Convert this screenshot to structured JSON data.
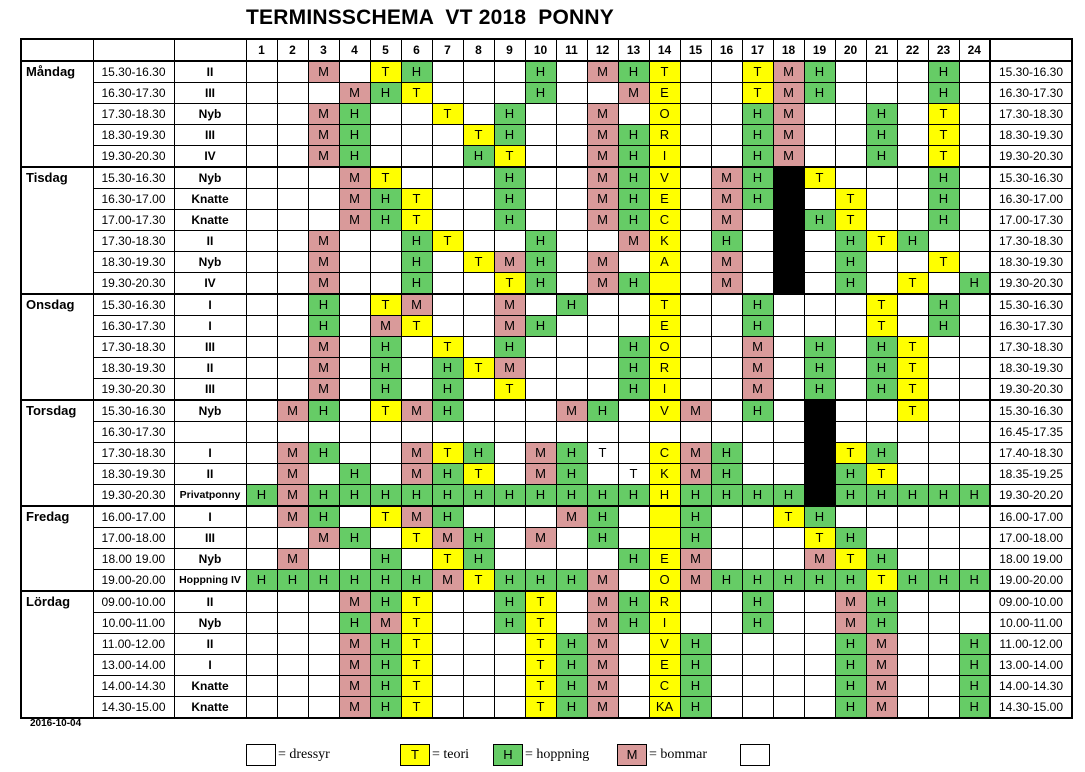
{
  "title": "TERMINSSCHEMA  VT 2018  PONNY",
  "date": "2016-10-04",
  "weeks": [
    "1",
    "2",
    "3",
    "4",
    "5",
    "6",
    "7",
    "8",
    "9",
    "10",
    "11",
    "12",
    "13",
    "14",
    "15",
    "16",
    "17",
    "18",
    "19",
    "20",
    "21",
    "22",
    "23",
    "24"
  ],
  "days": [
    {
      "name": "Måndag",
      "rows": [
        {
          "time": "15.30-16.30",
          "group": "II",
          "rtime": "15.30-16.30",
          "cells": [
            "",
            "",
            "M",
            "",
            "T",
            "H",
            "",
            "",
            "",
            "H",
            "",
            "M",
            "H",
            "T",
            "",
            "",
            "T",
            "M",
            "H",
            "",
            "",
            "",
            "H",
            ""
          ]
        },
        {
          "time": "16.30-17.30",
          "group": "III",
          "rtime": "16.30-17.30",
          "cells": [
            "",
            "",
            "",
            "M",
            "H",
            "T",
            "",
            "",
            "",
            "H",
            "",
            "",
            "M",
            "E",
            "",
            "",
            "T",
            "M",
            "H",
            "",
            "",
            "",
            "H",
            ""
          ]
        },
        {
          "time": "17.30-18.30",
          "group": "Nyb",
          "rtime": "17.30-18.30",
          "cells": [
            "",
            "",
            "M",
            "H",
            "",
            "",
            "T",
            "",
            "H",
            "",
            "",
            "M",
            "",
            "O",
            "",
            "",
            "H",
            "M",
            "",
            "",
            "H",
            "",
            "T",
            ""
          ]
        },
        {
          "time": "18.30-19.30",
          "group": "III",
          "rtime": "18.30-19.30",
          "cells": [
            "",
            "",
            "M",
            "H",
            "",
            "",
            "",
            "T",
            "H",
            "",
            "",
            "M",
            "H",
            "R",
            "",
            "",
            "H",
            "M",
            "",
            "",
            "H",
            "",
            "T",
            ""
          ]
        },
        {
          "time": "19.30-20.30",
          "group": "IV",
          "rtime": "19.30-20.30",
          "cells": [
            "",
            "",
            "M",
            "H",
            "",
            "",
            "",
            "H",
            "T",
            "",
            "",
            "M",
            "H",
            "I",
            "",
            "",
            "H",
            "M",
            "",
            "",
            "H",
            "",
            "T",
            ""
          ]
        }
      ]
    },
    {
      "name": "Tisdag",
      "rows": [
        {
          "time": "15.30-16.30",
          "group": "Nyb",
          "rtime": "15.30-16.30",
          "cells": [
            "",
            "",
            "",
            "M",
            "T",
            "",
            "",
            "",
            "H",
            "",
            "",
            "M",
            "H",
            "V",
            "",
            "M",
            "H",
            "#",
            "T",
            "",
            "",
            "",
            "H",
            ""
          ]
        },
        {
          "time": "16.30-17.00",
          "group": "Knatte",
          "rtime": "16.30-17.00",
          "cells": [
            "",
            "",
            "",
            "M",
            "H",
            "T",
            "",
            "",
            "H",
            "",
            "",
            "M",
            "H",
            "E",
            "",
            "M",
            "H",
            "#",
            "",
            "T",
            "",
            "",
            "H",
            ""
          ]
        },
        {
          "time": "17.00-17.30",
          "group": "Knatte",
          "rtime": "17.00-17.30",
          "cells": [
            "",
            "",
            "",
            "M",
            "H",
            "T",
            "",
            "",
            "H",
            "",
            "",
            "M",
            "H",
            "C",
            "",
            "M",
            "",
            "#",
            "H",
            "T",
            "",
            "",
            "H",
            ""
          ]
        },
        {
          "time": "17.30-18.30",
          "group": "II",
          "rtime": "17.30-18.30",
          "cells": [
            "",
            "",
            "M",
            "",
            "",
            "H",
            "T",
            "",
            "",
            "H",
            "",
            "",
            "M",
            "K",
            "",
            "H",
            "",
            "#",
            "",
            "H",
            "T",
            "H",
            "",
            ""
          ]
        },
        {
          "time": "18.30-19.30",
          "group": "Nyb",
          "rtime": "18.30-19.30",
          "cells": [
            "",
            "",
            "M",
            "",
            "",
            "H",
            "",
            "T",
            "M",
            "H",
            "",
            "M",
            "",
            "A",
            "",
            "M",
            "",
            "#",
            "",
            "H",
            "",
            "",
            "T",
            ""
          ]
        },
        {
          "time": "19.30-20.30",
          "group": "IV",
          "rtime": "19.30-20.30",
          "cells": [
            "",
            "",
            "M",
            "",
            "",
            "H",
            "",
            "",
            "T",
            "H",
            "",
            "M",
            "H",
            "",
            "",
            "M",
            "",
            "#",
            "",
            "H",
            "",
            "T",
            "",
            "H"
          ]
        }
      ]
    },
    {
      "name": "Onsdag",
      "rows": [
        {
          "time": "15.30-16.30",
          "group": "I",
          "rtime": "15.30-16.30",
          "cells": [
            "",
            "",
            "H",
            "",
            "T",
            "M",
            "",
            "",
            "M",
            "",
            "H",
            "",
            "",
            "T",
            "",
            "",
            "H",
            "",
            "",
            "",
            "T",
            "",
            "H",
            ""
          ]
        },
        {
          "time": "16.30-17.30",
          "group": "I",
          "rtime": "16.30-17.30",
          "cells": [
            "",
            "",
            "H",
            "",
            "M",
            "T",
            "",
            "",
            "M",
            "H",
            "",
            "",
            "",
            "E",
            "",
            "",
            "H",
            "",
            "",
            "",
            "T",
            "",
            "H",
            ""
          ]
        },
        {
          "time": "17.30-18.30",
          "group": "III",
          "rtime": "17.30-18.30",
          "cells": [
            "",
            "",
            "M",
            "",
            "H",
            "",
            "T",
            "",
            "H",
            "",
            "",
            "",
            "H",
            "O",
            "",
            "",
            "M",
            "",
            "H",
            "",
            "H",
            "T",
            "",
            ""
          ]
        },
        {
          "time": "18.30-19.30",
          "group": "II",
          "rtime": "18.30-19.30",
          "cells": [
            "",
            "",
            "M",
            "",
            "H",
            "",
            "H",
            "T",
            "M",
            "",
            "",
            "",
            "H",
            "R",
            "",
            "",
            "M",
            "",
            "H",
            "",
            "H",
            "T",
            "",
            ""
          ]
        },
        {
          "time": "19.30-20.30",
          "group": "III",
          "rtime": "19.30-20.30",
          "cells": [
            "",
            "",
            "M",
            "",
            "H",
            "",
            "H",
            "",
            "T",
            "",
            "",
            "",
            "H",
            "I",
            "",
            "",
            "M",
            "",
            "H",
            "",
            "H",
            "T",
            "",
            ""
          ]
        }
      ]
    },
    {
      "name": "Torsdag",
      "rows": [
        {
          "time": "15.30-16.30",
          "group": "Nyb",
          "rtime": "15.30-16.30",
          "cells": [
            "",
            "M",
            "H",
            "",
            "T",
            "M",
            "H",
            "",
            "",
            "",
            "M",
            "H",
            "",
            "V",
            "M",
            "",
            "H",
            "",
            "#",
            "",
            "",
            "T",
            "",
            ""
          ]
        },
        {
          "time": "16.30-17.30",
          "group": "",
          "rtime": "16.45-17.35",
          "cells": [
            "",
            "",
            "",
            "",
            "",
            "",
            "",
            "",
            "",
            "",
            "",
            "",
            "",
            "",
            "",
            "",
            "",
            "",
            "#",
            "",
            "",
            "",
            "",
            ""
          ]
        },
        {
          "time": "17.30-18.30",
          "group": "I",
          "rtime": "17.40-18.30",
          "cells": [
            "",
            "M",
            "H",
            "",
            "",
            "M",
            "T",
            "H",
            "",
            "M",
            "H",
            "T",
            "",
            "C",
            "M",
            "H",
            "",
            "",
            "#",
            "T",
            "H",
            "",
            "",
            ""
          ]
        },
        {
          "time": "18.30-19.30",
          "group": "II",
          "rtime": "18.35-19.25",
          "cells": [
            "",
            "M",
            "",
            "H",
            "",
            "M",
            "H",
            "T",
            "",
            "M",
            "H",
            "",
            "T",
            "K",
            "M",
            "H",
            "",
            "",
            "#",
            "H",
            "T",
            "",
            "",
            ""
          ]
        },
        {
          "time": "19.30-20.30",
          "group": "Privatponny",
          "rtime": "19.30-20.20",
          "cells": [
            "H",
            "M",
            "H",
            "H",
            "H",
            "H",
            "H",
            "H",
            "H",
            "H",
            "H",
            "H",
            "H",
            "H",
            "H",
            "H",
            "H",
            "H",
            "#",
            "H",
            "H",
            "H",
            "H",
            "H"
          ]
        }
      ]
    },
    {
      "name": "Fredag",
      "rows": [
        {
          "time": "16.00-17.00",
          "group": "I",
          "rtime": "16.00-17.00",
          "cells": [
            "",
            "M",
            "H",
            "",
            "T",
            "M",
            "H",
            "",
            "",
            "",
            "M",
            "H",
            "",
            "",
            "H",
            "",
            "",
            "T",
            "H",
            "",
            "",
            "",
            "",
            ""
          ]
        },
        {
          "time": "17.00-18.00",
          "group": "III",
          "rtime": "17.00-18.00",
          "cells": [
            "",
            "",
            "M",
            "H",
            "",
            "T",
            "M",
            "H",
            "",
            "M",
            "",
            "H",
            "",
            "",
            "H",
            "",
            "",
            "",
            "T",
            "H",
            "",
            "",
            "",
            ""
          ]
        },
        {
          "time": "18.00 19.00",
          "group": "Nyb",
          "rtime": "18.00 19.00",
          "cells": [
            "",
            "M",
            "",
            "",
            "H",
            "",
            "T",
            "H",
            "",
            "",
            "",
            "",
            "H",
            "E",
            "M",
            "",
            "",
            "",
            "M",
            "T",
            "H",
            "",
            "",
            ""
          ]
        },
        {
          "time": "19.00-20.00",
          "group": "Hoppning IV",
          "rtime": "19.00-20.00",
          "cells": [
            "H",
            "H",
            "H",
            "H",
            "H",
            "H",
            "M",
            "T",
            "H",
            "H",
            "H",
            "M",
            "",
            "O",
            "M",
            "H",
            "H",
            "H",
            "H",
            "H",
            "T",
            "H",
            "H",
            "H"
          ]
        }
      ]
    },
    {
      "name": "Lördag",
      "rows": [
        {
          "time": "09.00-10.00",
          "group": "II",
          "rtime": "09.00-10.00",
          "cells": [
            "",
            "",
            "",
            "M",
            "H",
            "T",
            "",
            "",
            "H",
            "T",
            "",
            "M",
            "H",
            "R",
            "",
            "",
            "H",
            "",
            "",
            "M",
            "H",
            "",
            "",
            ""
          ]
        },
        {
          "time": "10.00-11.00",
          "group": "Nyb",
          "rtime": "10.00-11.00",
          "cells": [
            "",
            "",
            "",
            "H",
            "M",
            "T",
            "",
            "",
            "H",
            "T",
            "",
            "M",
            "H",
            "I",
            "",
            "",
            "H",
            "",
            "",
            "M",
            "H",
            "",
            "",
            ""
          ]
        },
        {
          "time": "11.00-12.00",
          "group": "II",
          "rtime": "11.00-12.00",
          "cells": [
            "",
            "",
            "",
            "M",
            "H",
            "T",
            "",
            "",
            "",
            "T",
            "H",
            "M",
            "",
            "V",
            "H",
            "",
            "",
            "",
            "",
            "H",
            "M",
            "",
            "",
            "H"
          ]
        },
        {
          "time": "13.00-14.00",
          "group": "I",
          "rtime": "13.00-14.00",
          "cells": [
            "",
            "",
            "",
            "M",
            "H",
            "T",
            "",
            "",
            "",
            "T",
            "H",
            "M",
            "",
            "E",
            "H",
            "",
            "",
            "",
            "",
            "H",
            "M",
            "",
            "",
            "H"
          ]
        },
        {
          "time": "14.00-14.30",
          "group": "Knatte",
          "rtime": "14.00-14.30",
          "cells": [
            "",
            "",
            "",
            "M",
            "H",
            "T",
            "",
            "",
            "",
            "T",
            "H",
            "M",
            "",
            "C",
            "H",
            "",
            "",
            "",
            "",
            "H",
            "M",
            "",
            "",
            "H"
          ]
        },
        {
          "time": "14.30-15.00",
          "group": "Knatte",
          "rtime": "14.30-15.00",
          "cells": [
            "",
            "",
            "",
            "M",
            "H",
            "T",
            "",
            "",
            "",
            "T",
            "H",
            "M",
            "",
            "KA",
            "H",
            "",
            "",
            "",
            "",
            "H",
            "M",
            "",
            "",
            "H"
          ]
        }
      ]
    }
  ],
  "legend": [
    {
      "box": "",
      "text": "= dressyr",
      "color": "#ffffff"
    },
    {
      "box": "T",
      "text": "= teori",
      "color": "#ffff00"
    },
    {
      "box": "H",
      "text": "= hoppning",
      "color": "#66cc66"
    },
    {
      "box": "M",
      "text": "= bommar",
      "color": "#d99a9a"
    },
    {
      "box": "",
      "text": "",
      "color": "#ffffff"
    }
  ],
  "colors": {
    "teori": "#ffff00",
    "hoppning": "#66cc66",
    "bommar": "#d99a9a",
    "blocked": "#000000",
    "vecka_column": "#ffff00"
  }
}
